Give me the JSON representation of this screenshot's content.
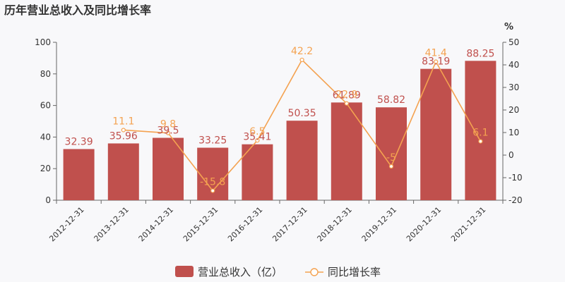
{
  "chart_data": {
    "type": "bar",
    "title": "历年营业总收入及同比增长率",
    "categories": [
      "2012-12-31",
      "2013-12-31",
      "2014-12-31",
      "2015-12-31",
      "2016-12-31",
      "2017-12-31",
      "2018-12-31",
      "2019-12-31",
      "2020-12-31",
      "2021-12-31"
    ],
    "series": [
      {
        "name": "营业总收入（亿）",
        "type": "bar",
        "axis": "left",
        "color": "#c0504d",
        "values": [
          32.39,
          35.96,
          39.5,
          33.25,
          35.41,
          50.35,
          61.89,
          58.82,
          83.19,
          88.25
        ]
      },
      {
        "name": "同比增长率",
        "type": "line",
        "axis": "right",
        "color": "#f4a250",
        "values": [
          null,
          11.1,
          9.8,
          -15.8,
          6.5,
          42.2,
          22.9,
          -5,
          41.4,
          6.1
        ]
      }
    ],
    "y_left": {
      "ylim": [
        0,
        100
      ],
      "ticks": [
        0,
        20,
        40,
        60,
        80,
        100
      ]
    },
    "y_right": {
      "ylim": [
        -20,
        50
      ],
      "ticks": [
        -20,
        -10,
        0,
        10,
        20,
        30,
        40,
        50
      ],
      "unit": "%"
    },
    "legend_position": "bottom",
    "grid": false
  }
}
